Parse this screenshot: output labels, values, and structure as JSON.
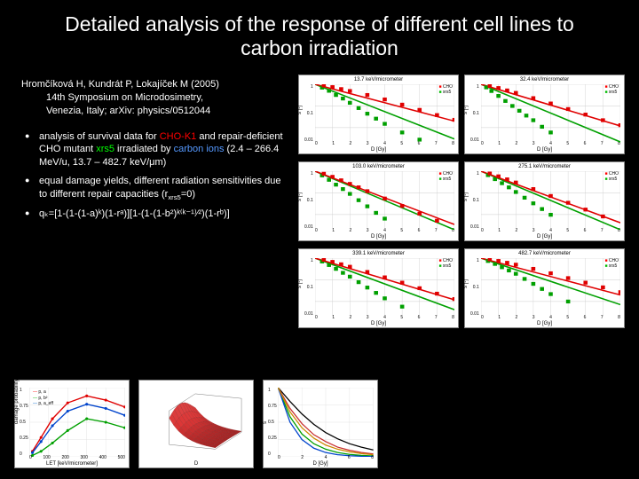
{
  "title": "Detailed analysis of the response of different cell lines to carbon irradiation",
  "citation": {
    "line1": "Hromčíková H, Kundrát P, Lokajíček M (2005)",
    "line2": "14th Symposium on Microdosimetry, ",
    "line3": "Venezia, Italy; arXiv: physics/0512044"
  },
  "bullets": {
    "b1_pre": "analysis of survival data for ",
    "b1_red": "CHO-K1",
    "b1_mid": " and repair-deficient CHO mutant ",
    "b1_grn": "xrs5",
    "b1_post1": " irradiated by ",
    "b1_blue": "carbon ions",
    "b1_post2": " (2.4 – 266.4 MeV/u, 13.7 – 482.7 keV/μm)",
    "b2_pre": "equal damage yields, different radiation sensitivities due to different repair capacities (r",
    "b2_sub": "xrs5",
    "b2_post": "=0)",
    "b3": "qₖ=[1-(1-(1-a)ᵏ)(1-rᵃ)][1-(1-(1-b²)ᵏ⁽ᵏ⁻¹⁾⁄²)(1-rᵇ)]"
  },
  "survival_plots": {
    "ylabel": "s [-]",
    "xlabel": "D [Gy]",
    "xticks": [
      "0",
      "1",
      "2",
      "3",
      "4",
      "5",
      "6",
      "7",
      "8"
    ],
    "yticks": [
      "1",
      "0.1",
      "0.01"
    ],
    "legend_red": "CHO",
    "legend_grn": "xrs5",
    "colors": {
      "red": "#e00000",
      "green": "#00a000",
      "grid": "#cccccc",
      "bg": "#ffffff"
    },
    "line_width": 1.6,
    "marker_size": 2.2,
    "panels": [
      {
        "title": "13.7 keV/micrometer",
        "red_line": {
          "x": [
            0,
            8
          ],
          "y": [
            1,
            0.02
          ]
        },
        "green_line": {
          "x": [
            0,
            8
          ],
          "y": [
            1,
            0.003
          ]
        },
        "red_pts": [
          [
            0.5,
            0.88
          ],
          [
            1,
            0.74
          ],
          [
            1.5,
            0.6
          ],
          [
            2,
            0.49
          ],
          [
            3,
            0.32
          ],
          [
            4,
            0.2
          ],
          [
            5,
            0.115
          ],
          [
            6,
            0.066
          ],
          [
            7,
            0.038
          ],
          [
            8,
            0.023
          ]
        ],
        "green_pts": [
          [
            0.4,
            0.7
          ],
          [
            0.8,
            0.5
          ],
          [
            1.2,
            0.32
          ],
          [
            1.6,
            0.22
          ],
          [
            2,
            0.14
          ],
          [
            2.5,
            0.08
          ],
          [
            3,
            0.044
          ],
          [
            3.5,
            0.026
          ],
          [
            4,
            0.015
          ],
          [
            5,
            0.006
          ],
          [
            6,
            0.0028
          ]
        ]
      },
      {
        "title": "32.4 keV/micrometer",
        "red_line": {
          "x": [
            0,
            8
          ],
          "y": [
            1,
            0.012
          ]
        },
        "green_line": {
          "x": [
            0,
            8
          ],
          "y": [
            1,
            0.0022
          ]
        },
        "red_pts": [
          [
            0.5,
            0.84
          ],
          [
            1,
            0.67
          ],
          [
            1.5,
            0.52
          ],
          [
            2,
            0.4
          ],
          [
            3,
            0.23
          ],
          [
            4,
            0.13
          ],
          [
            5,
            0.072
          ],
          [
            6,
            0.04
          ],
          [
            7,
            0.022
          ],
          [
            8,
            0.013
          ]
        ],
        "green_pts": [
          [
            0.3,
            0.72
          ],
          [
            0.6,
            0.49
          ],
          [
            1,
            0.29
          ],
          [
            1.4,
            0.17
          ],
          [
            1.8,
            0.1
          ],
          [
            2.2,
            0.06
          ],
          [
            2.6,
            0.036
          ],
          [
            3,
            0.022
          ],
          [
            3.5,
            0.011
          ],
          [
            4,
            0.006
          ]
        ]
      },
      {
        "title": "103.0 keV/micrometer",
        "red_line": {
          "x": [
            0,
            8
          ],
          "y": [
            1,
            0.0035
          ]
        },
        "green_line": {
          "x": [
            0,
            8
          ],
          "y": [
            1,
            0.0012
          ]
        },
        "red_pts": [
          [
            0.5,
            0.76
          ],
          [
            1,
            0.55
          ],
          [
            1.5,
            0.38
          ],
          [
            2,
            0.26
          ],
          [
            2.5,
            0.18
          ],
          [
            3,
            0.12
          ],
          [
            4,
            0.055
          ],
          [
            5,
            0.025
          ],
          [
            6,
            0.011
          ],
          [
            7,
            0.0052
          ]
        ],
        "green_pts": [
          [
            0.4,
            0.64
          ],
          [
            0.8,
            0.4
          ],
          [
            1.2,
            0.24
          ],
          [
            1.6,
            0.15
          ],
          [
            2,
            0.09
          ],
          [
            2.5,
            0.046
          ],
          [
            3,
            0.024
          ],
          [
            3.5,
            0.012
          ],
          [
            4,
            0.0065
          ]
        ]
      },
      {
        "title": "275.1 keV/micrometer",
        "red_line": {
          "x": [
            0,
            8
          ],
          "y": [
            1,
            0.0042
          ]
        },
        "green_line": {
          "x": [
            0,
            8
          ],
          "y": [
            1,
            0.002
          ]
        },
        "red_pts": [
          [
            0.5,
            0.78
          ],
          [
            1,
            0.58
          ],
          [
            1.5,
            0.42
          ],
          [
            2,
            0.3
          ],
          [
            3,
            0.15
          ],
          [
            4,
            0.072
          ],
          [
            5,
            0.035
          ],
          [
            6,
            0.017
          ],
          [
            7,
            0.0082
          ]
        ],
        "green_pts": [
          [
            0.4,
            0.66
          ],
          [
            0.8,
            0.43
          ],
          [
            1.2,
            0.28
          ],
          [
            1.6,
            0.18
          ],
          [
            2,
            0.11
          ],
          [
            2.5,
            0.06
          ],
          [
            3,
            0.033
          ],
          [
            3.5,
            0.018
          ],
          [
            4,
            0.0098
          ]
        ]
      },
      {
        "title": "339.1 keV/micrometer",
        "red_line": {
          "x": [
            0,
            8
          ],
          "y": [
            1,
            0.012
          ]
        },
        "green_line": {
          "x": [
            0,
            8
          ],
          "y": [
            1,
            0.0042
          ]
        },
        "red_pts": [
          [
            0.5,
            0.84
          ],
          [
            1,
            0.67
          ],
          [
            1.5,
            0.52
          ],
          [
            2,
            0.4
          ],
          [
            3,
            0.23
          ],
          [
            4,
            0.13
          ],
          [
            5,
            0.074
          ],
          [
            6,
            0.041
          ],
          [
            7,
            0.023
          ],
          [
            8,
            0.013
          ]
        ],
        "green_pts": [
          [
            0.4,
            0.7
          ],
          [
            0.8,
            0.48
          ],
          [
            1.2,
            0.32
          ],
          [
            1.6,
            0.21
          ],
          [
            2,
            0.14
          ],
          [
            2.5,
            0.078
          ],
          [
            3,
            0.044
          ],
          [
            3.5,
            0.025
          ],
          [
            4,
            0.014
          ],
          [
            5,
            0.0058
          ]
        ]
      },
      {
        "title": "482.7 keV/micrometer",
        "red_line": {
          "x": [
            0,
            8
          ],
          "y": [
            1,
            0.02
          ]
        },
        "green_line": {
          "x": [
            0,
            8
          ],
          "y": [
            1,
            0.0072
          ]
        },
        "red_pts": [
          [
            0.5,
            0.88
          ],
          [
            1,
            0.74
          ],
          [
            1.5,
            0.61
          ],
          [
            2,
            0.5
          ],
          [
            3,
            0.32
          ],
          [
            4,
            0.2
          ],
          [
            5,
            0.12
          ],
          [
            6,
            0.074
          ],
          [
            7,
            0.045
          ],
          [
            8,
            0.027
          ]
        ],
        "green_pts": [
          [
            0.4,
            0.74
          ],
          [
            0.8,
            0.54
          ],
          [
            1.2,
            0.38
          ],
          [
            1.6,
            0.27
          ],
          [
            2,
            0.19
          ],
          [
            2.5,
            0.11
          ],
          [
            3,
            0.065
          ],
          [
            3.5,
            0.038
          ],
          [
            4,
            0.022
          ],
          [
            5,
            0.01
          ]
        ]
      }
    ]
  },
  "bottom_left": {
    "type": "line",
    "xlabel": "LET [keV/micrometer]",
    "ylabel": "damage probability [-]",
    "xlim": [
      0,
      500
    ],
    "ylim": [
      0,
      1
    ],
    "xticks": [
      "0",
      "100",
      "200",
      "300",
      "400",
      "500"
    ],
    "yticks": [
      "1",
      "0.75",
      "0.5",
      "0.25",
      "0"
    ],
    "colors": {
      "a": "#e00000",
      "b2": "#00a000",
      "a_eff": "#0044cc",
      "grid": "#dddddd"
    },
    "legend": {
      "a": "p, a",
      "b2": "p, b²",
      "aeff": "p, a_eff"
    },
    "series": {
      "a": [
        [
          15,
          0.08
        ],
        [
          60,
          0.28
        ],
        [
          120,
          0.55
        ],
        [
          200,
          0.78
        ],
        [
          300,
          0.88
        ],
        [
          400,
          0.82
        ],
        [
          500,
          0.72
        ]
      ],
      "b2": [
        [
          15,
          0.02
        ],
        [
          60,
          0.08
        ],
        [
          120,
          0.2
        ],
        [
          200,
          0.38
        ],
        [
          300,
          0.55
        ],
        [
          400,
          0.5
        ],
        [
          500,
          0.42
        ]
      ],
      "aeff": [
        [
          15,
          0.06
        ],
        [
          60,
          0.22
        ],
        [
          120,
          0.45
        ],
        [
          200,
          0.66
        ],
        [
          300,
          0.76
        ],
        [
          400,
          0.7
        ],
        [
          500,
          0.6
        ]
      ]
    }
  },
  "bottom_mid": {
    "type": "surface",
    "xlabel": "D",
    "ylabel": "LET",
    "zlim": [
      0,
      1
    ],
    "surface_color": "#c83030",
    "mesh_color": "#802020"
  },
  "bottom_right": {
    "type": "line",
    "xlabel": "D [Gy]",
    "ylabel": "s",
    "xlim": [
      0,
      8
    ],
    "ylim": [
      0,
      1
    ],
    "xticks": [
      "0",
      "2",
      "4",
      "6",
      "8"
    ],
    "yticks": [
      "1",
      "0.75",
      "0.5",
      "0.25",
      "0"
    ],
    "colors": {
      "grid": "#dddddd",
      "c1": "#000000",
      "c2": "#c83030",
      "c3": "#00a000",
      "c4": "#0044cc",
      "c5": "#cc8800"
    },
    "series": [
      [
        [
          0,
          1
        ],
        [
          1,
          0.8
        ],
        [
          2,
          0.62
        ],
        [
          3,
          0.47
        ],
        [
          4,
          0.35
        ],
        [
          5,
          0.26
        ],
        [
          6,
          0.19
        ],
        [
          7,
          0.14
        ],
        [
          8,
          0.1
        ]
      ],
      [
        [
          0,
          1
        ],
        [
          1,
          0.7
        ],
        [
          2,
          0.48
        ],
        [
          3,
          0.32
        ],
        [
          4,
          0.22
        ],
        [
          5,
          0.14
        ],
        [
          6,
          0.095
        ],
        [
          7,
          0.063
        ],
        [
          8,
          0.042
        ]
      ],
      [
        [
          0,
          1
        ],
        [
          1,
          0.58
        ],
        [
          2,
          0.33
        ],
        [
          3,
          0.19
        ],
        [
          4,
          0.11
        ],
        [
          5,
          0.062
        ],
        [
          6,
          0.035
        ],
        [
          7,
          0.02
        ],
        [
          8,
          0.012
        ]
      ],
      [
        [
          0,
          1
        ],
        [
          1,
          0.5
        ],
        [
          2,
          0.25
        ],
        [
          3,
          0.125
        ],
        [
          4,
          0.062
        ],
        [
          5,
          0.031
        ],
        [
          6,
          0.016
        ],
        [
          7,
          0.008
        ],
        [
          8,
          0.0041
        ]
      ],
      [
        [
          0,
          1
        ],
        [
          1,
          0.65
        ],
        [
          2,
          0.42
        ],
        [
          3,
          0.27
        ],
        [
          4,
          0.17
        ],
        [
          5,
          0.11
        ],
        [
          6,
          0.072
        ],
        [
          7,
          0.046
        ],
        [
          8,
          0.03
        ]
      ]
    ]
  }
}
